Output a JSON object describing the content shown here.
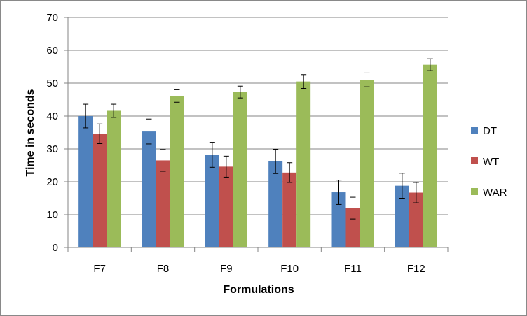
{
  "chart_data": {
    "type": "bar",
    "title": "",
    "xlabel": "Formulations",
    "ylabel": "Time in seconds",
    "ylim": [
      0,
      70
    ],
    "yticks": [
      0,
      10,
      20,
      30,
      40,
      50,
      60,
      70
    ],
    "grid": true,
    "legend_position": "right",
    "categories": [
      "F7",
      "F8",
      "F9",
      "F10",
      "F11",
      "F12"
    ],
    "series": [
      {
        "name": "DT",
        "color": "#4F81BD",
        "values": [
          40.0,
          35.3,
          28.2,
          26.2,
          16.8,
          18.8
        ],
        "errors": [
          3.6,
          3.8,
          3.8,
          3.7,
          3.7,
          3.8
        ]
      },
      {
        "name": "WT",
        "color": "#C0504D",
        "values": [
          34.6,
          26.5,
          24.6,
          22.8,
          12.0,
          16.7
        ],
        "errors": [
          3.0,
          3.3,
          3.2,
          3.0,
          3.3,
          3.1
        ]
      },
      {
        "name": "WAR",
        "color": "#9BBB59",
        "values": [
          41.6,
          46.1,
          47.3,
          50.5,
          51.0,
          55.6
        ],
        "errors": [
          2.0,
          1.9,
          1.8,
          2.1,
          2.1,
          1.8
        ]
      }
    ]
  }
}
